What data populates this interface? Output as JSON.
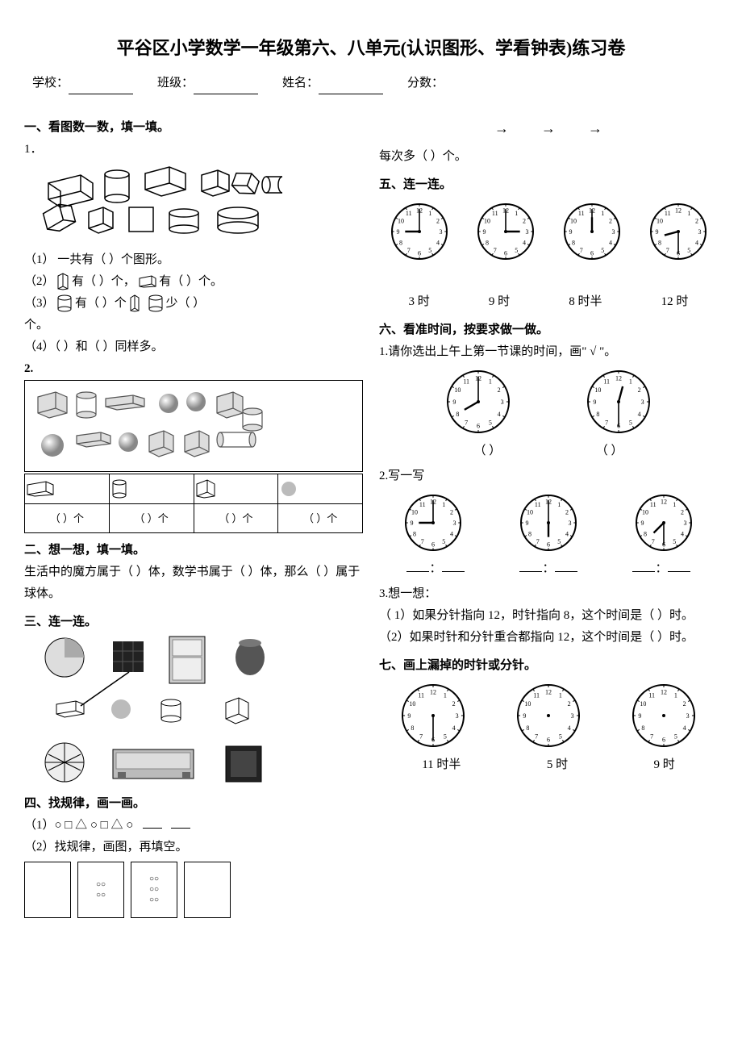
{
  "title": "平谷区小学数学一年级第六、八单元(认识图形、学看钟表)练习卷",
  "header": {
    "school": "学校：",
    "class": "班级：",
    "name": "姓名：",
    "score": "分数："
  },
  "s1": {
    "head": "一、看图数一数，填一填。",
    "q1": "1．",
    "l1a": "（1） 一共有（        ）个图形。",
    "l2a": "（2）",
    "l2b": "有（   ）个，",
    "l2c": "有（  ）个。",
    "l3a": "（3）",
    "l3b": "有（    ）个",
    "l3c": "少（     ）",
    "l3d": "个。",
    "l4": "（4）（         ）和（           ）同样多。",
    "q2": "2.",
    "tcell": "（     ）个"
  },
  "s2": {
    "head": "二、想一想，填一填。",
    "text": "生活中的魔方属于（         ）体，数学书属于（         ）体，那么（               ）属于球体。"
  },
  "s3": {
    "head": "三、连一连。"
  },
  "s4": {
    "head": "四、找规律，画一画。",
    "p1": "（1）○  □  △  ○  □  △  ○",
    "p2": "（2）找规律，画图，再填空。"
  },
  "r_top": {
    "text": "每次多（       ）个。"
  },
  "s5": {
    "head": "五、连一连。",
    "labels": [
      "3 时",
      "9 时",
      "8 时半",
      "12 时"
    ],
    "clocks": [
      {
        "h": 9,
        "m": 0
      },
      {
        "h": 3,
        "m": 0
      },
      {
        "h": 12,
        "m": 0
      },
      {
        "h": 8,
        "m": 30
      }
    ]
  },
  "s6": {
    "head": "六、看准时间，按要求做一做。",
    "q1": "1.请你选出上午上第一节课的时间，画\" √ \"。",
    "c1": [
      {
        "h": 8,
        "m": 0
      },
      {
        "h": 12,
        "m": 30
      }
    ],
    "paren": "（        ）",
    "q2": "2.写一写",
    "c2": [
      {
        "h": 9,
        "m": 0
      },
      {
        "h": 6,
        "m": 0
      },
      {
        "h": 7,
        "m": 30
      }
    ],
    "slot": "：",
    "q3": "3.想一想：",
    "q3a": "（ 1）如果分针指向 12，时针指向 8，这个时间是（           ）时。",
    "q3b": "（2）如果时针和分针重合都指向 12，这个时间是（    ）时。"
  },
  "s7": {
    "head": "七、画上漏掉的时针或分针。",
    "clocks": [
      {
        "h": null,
        "m": 30
      },
      {
        "h": null,
        "m": null
      },
      {
        "h": null,
        "m": null
      }
    ],
    "labels": [
      "11 时半",
      "5 时",
      "9 时"
    ]
  },
  "style": {
    "clock_r": 34,
    "clock_stroke": "#000",
    "bg": "#ffffff"
  }
}
